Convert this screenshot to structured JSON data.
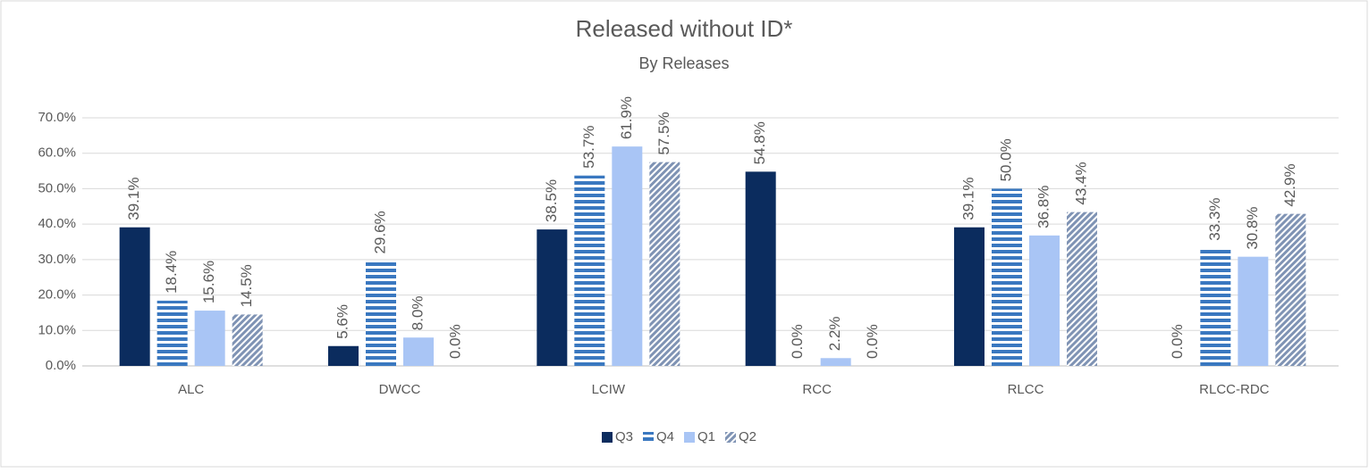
{
  "chart_data": {
    "type": "bar",
    "title": "Released without ID*",
    "subtitle": "By Releases",
    "categories": [
      "ALC",
      "DWCC",
      "LCIW",
      "RCC",
      "RLCC",
      "RLCC-RDC"
    ],
    "series": [
      {
        "name": "Q3",
        "color": "#0b2c5e",
        "pattern": "solid",
        "values": [
          39.1,
          5.6,
          38.5,
          54.8,
          39.1,
          0.0
        ],
        "value_labels": [
          "39.1%",
          "5.6%",
          "38.5%",
          "54.8%",
          "39.1%",
          "0.0%"
        ]
      },
      {
        "name": "Q4",
        "color": "#3a78c0",
        "pattern": "horizontal-stripes",
        "values": [
          18.4,
          29.6,
          53.7,
          0.0,
          50.0,
          33.3
        ],
        "value_labels": [
          "18.4%",
          "29.6%",
          "53.7%",
          "0.0%",
          "50.0%",
          "33.3%"
        ]
      },
      {
        "name": "Q1",
        "color": "#a9c5f5",
        "pattern": "solid",
        "values": [
          15.6,
          8.0,
          61.9,
          2.2,
          36.8,
          30.8
        ],
        "value_labels": [
          "15.6%",
          "8.0%",
          "61.9%",
          "2.2%",
          "36.8%",
          "30.8%"
        ]
      },
      {
        "name": "Q2",
        "color": "#7f93b4",
        "pattern": "diagonal-stripes",
        "values": [
          14.5,
          0.0,
          57.5,
          0.0,
          43.4,
          42.9
        ],
        "value_labels": [
          "14.5%",
          "0.0%",
          "57.5%",
          "0.0%",
          "43.4%",
          "42.9%"
        ]
      }
    ],
    "ylim": [
      0,
      70
    ],
    "yticks": [
      {
        "value": 0,
        "label": "0.0%"
      },
      {
        "value": 10,
        "label": "10.0%"
      },
      {
        "value": 20,
        "label": "20.0%"
      },
      {
        "value": 30,
        "label": "30.0%"
      },
      {
        "value": 40,
        "label": "40.0%"
      },
      {
        "value": 50,
        "label": "50.0%"
      },
      {
        "value": 60,
        "label": "60.0%"
      },
      {
        "value": 70,
        "label": "70.0%"
      }
    ],
    "grid": true,
    "legend": "bottom"
  }
}
